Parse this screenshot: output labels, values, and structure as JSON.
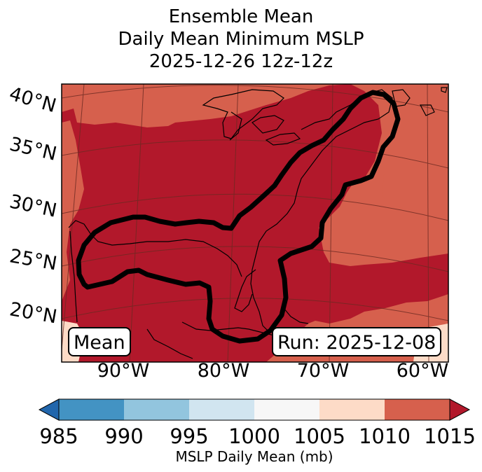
{
  "title": {
    "line1": "Ensemble Mean",
    "line2": "Daily Mean Minimum MSLP",
    "line3": "2025-12-26 12z-12z"
  },
  "lat_labels": [
    "40°N",
    "35°N",
    "30°N",
    "25°N",
    "20°N"
  ],
  "lon_labels": [
    "90°W",
    "80°W",
    "70°W",
    "60°W"
  ],
  "mean_label": "Mean",
  "run_label": "Run: 2025-12-08",
  "colorbar": {
    "label": "MSLP Daily Mean (mb)",
    "ticks": [
      "985",
      "990",
      "995",
      "1000",
      "1005",
      "1010",
      "1015"
    ],
    "bins": [
      {
        "range": "<985",
        "color": "#2166ac"
      },
      {
        "range": "985-990",
        "color": "#4393c3"
      },
      {
        "range": "990-995",
        "color": "#92c5de"
      },
      {
        "range": "995-1000",
        "color": "#d1e5f0"
      },
      {
        "range": "1000-1005",
        "color": "#f7f7f7"
      },
      {
        "range": "1005-1010",
        "color": "#fddbc7"
      },
      {
        "range": "1010-1015",
        "color": "#d6604d"
      },
      {
        "range": ">1015",
        "color": "#b2182b"
      }
    ]
  },
  "field_colors": {
    "1010_1015": "#d6604d",
    "above_1015": "#b2182b",
    "1005_1010": "#fddbc7"
  }
}
